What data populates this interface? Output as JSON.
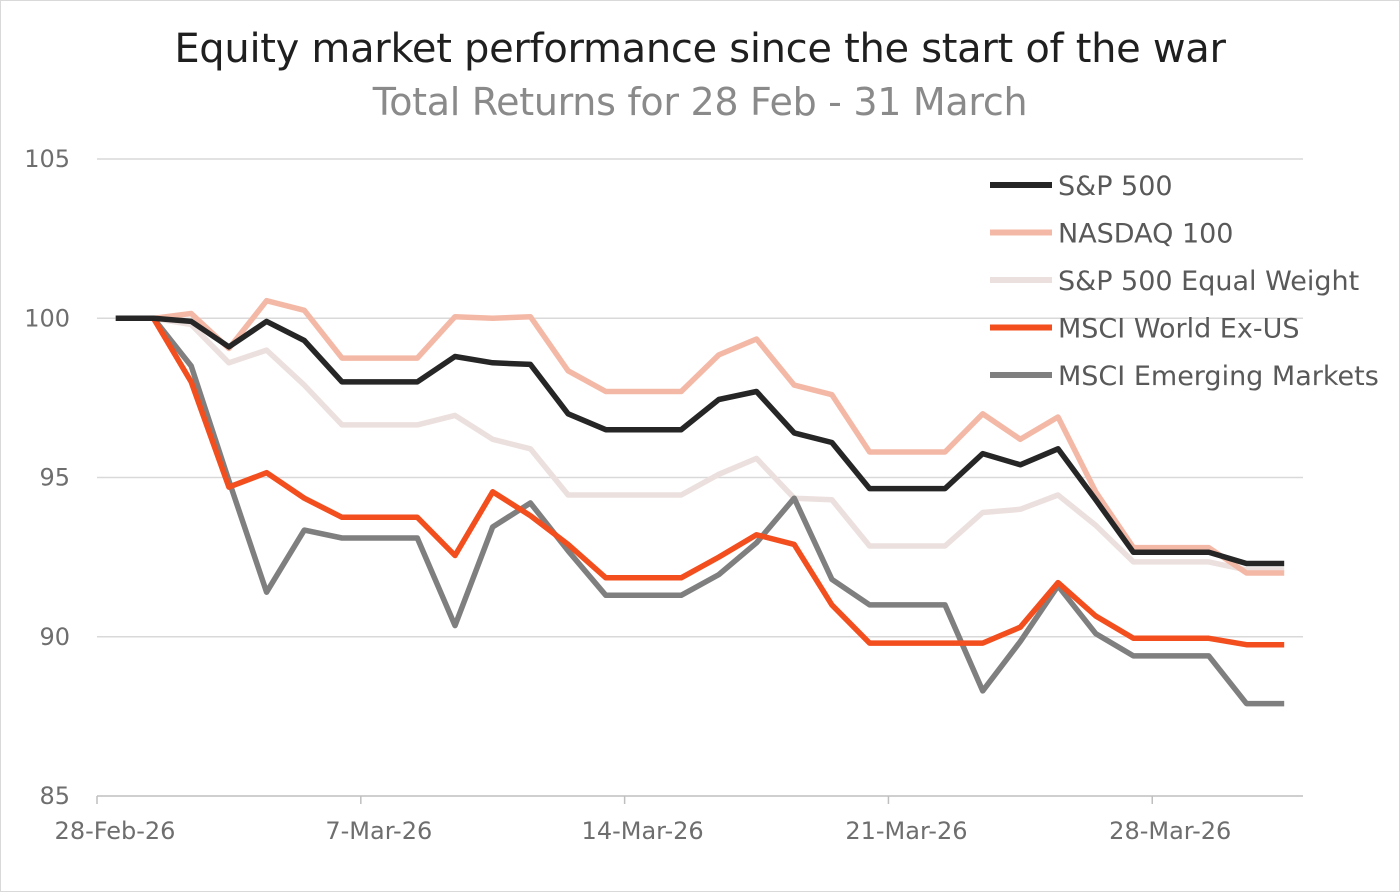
{
  "chart_data": {
    "type": "line",
    "title": "Equity market performance since the start of the war",
    "subtitle": "Total Returns for 28 Feb - 31 March",
    "xlabel": "",
    "ylabel": "",
    "ylim": [
      85,
      105
    ],
    "yticks": [
      85,
      90,
      95,
      100,
      105
    ],
    "xticks": [
      {
        "label": "28-Feb-26",
        "index": -0.5
      },
      {
        "label": "7-Mar-26",
        "index": 6.5
      },
      {
        "label": "14-Mar-26",
        "index": 13.5
      },
      {
        "label": "21-Mar-26",
        "index": 20.5
      },
      {
        "label": "28-Mar-26",
        "index": 27.5
      }
    ],
    "x_count": 32,
    "x_range": [
      -0.5,
      31.5
    ],
    "grid": true,
    "legend_position": "top-right",
    "series": [
      {
        "name": "S&P 500",
        "color": "#262626",
        "values": [
          100,
          100,
          99.9,
          99.1,
          99.9,
          99.3,
          98.0,
          98.0,
          98.0,
          98.8,
          98.6,
          98.55,
          97.0,
          96.5,
          96.5,
          96.5,
          97.45,
          97.7,
          96.4,
          96.1,
          94.65,
          94.65,
          94.65,
          95.75,
          95.4,
          95.9,
          94.3,
          92.65,
          92.65,
          92.65,
          92.3,
          92.3
        ]
      },
      {
        "name": "NASDAQ 100",
        "color": "#f4b9a6",
        "values": [
          100,
          100,
          100.15,
          99.05,
          100.55,
          100.25,
          98.75,
          98.75,
          98.75,
          100.05,
          100.0,
          100.05,
          98.35,
          97.7,
          97.7,
          97.7,
          98.85,
          99.35,
          97.9,
          97.6,
          95.8,
          95.8,
          95.8,
          97.0,
          96.2,
          96.9,
          94.55,
          92.8,
          92.8,
          92.8,
          92.0,
          92.0
        ]
      },
      {
        "name": "S&P 500 Equal Weight",
        "color": "#ece0de",
        "values": [
          100,
          100,
          99.8,
          98.6,
          99.0,
          97.9,
          96.65,
          96.65,
          96.65,
          96.95,
          96.2,
          95.9,
          94.45,
          94.45,
          94.45,
          94.45,
          95.1,
          95.6,
          94.35,
          94.3,
          92.85,
          92.85,
          92.85,
          93.9,
          94.0,
          94.45,
          93.5,
          92.35,
          92.35,
          92.35,
          92.1,
          92.1
        ]
      },
      {
        "name": "MSCI World Ex-US",
        "color": "#f24e1e",
        "values": [
          100,
          100,
          98.0,
          94.7,
          95.15,
          94.35,
          93.75,
          93.75,
          93.75,
          92.55,
          94.55,
          93.8,
          92.9,
          91.85,
          91.85,
          91.85,
          92.5,
          93.2,
          92.9,
          91.0,
          89.8,
          89.8,
          89.8,
          89.8,
          90.3,
          91.7,
          90.65,
          89.95,
          89.95,
          89.95,
          89.75,
          89.75
        ]
      },
      {
        "name": "MSCI Emerging Markets",
        "color": "#7f7f7f",
        "values": [
          100,
          100,
          98.5,
          94.9,
          91.4,
          93.35,
          93.1,
          93.1,
          93.1,
          90.35,
          93.45,
          94.2,
          92.7,
          91.3,
          91.3,
          91.3,
          91.95,
          92.95,
          94.35,
          91.8,
          91.0,
          91.0,
          91.0,
          88.3,
          89.85,
          91.6,
          90.1,
          89.4,
          89.4,
          89.4,
          87.9,
          87.9
        ]
      }
    ]
  }
}
